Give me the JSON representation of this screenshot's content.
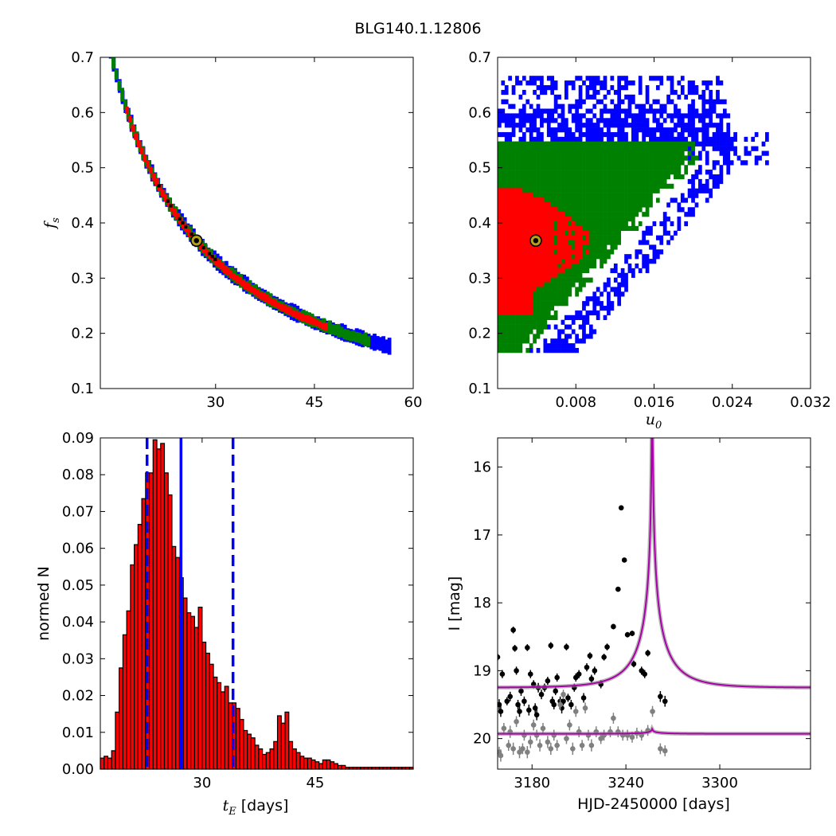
{
  "figure": {
    "title": "BLG140.1.12806"
  },
  "colors": {
    "sigma1": "#ff0000",
    "sigma2": "#008000",
    "sigma3": "#0000ff",
    "best_point": "#000000",
    "marker_fill": "#b8a016",
    "hist_bar": "#ff0000",
    "hist_edge": "#000000",
    "vline_median": "#0000ff",
    "vline_bounds": "#0000ff",
    "model_curve": "#aa00aa",
    "data_main": "#000000",
    "data_secondary": "#808080"
  },
  "chart_data": [
    {
      "id": "fs-vs-te",
      "type": "heatmap",
      "title": "",
      "xlabel": "",
      "ylabel": "f_s",
      "xlim": [
        12.5,
        60
      ],
      "ylim": [
        0.1,
        0.7
      ],
      "xticks": [
        30,
        45,
        60
      ],
      "yticks": [
        0.1,
        0.2,
        0.3,
        0.4,
        0.5,
        0.6,
        0.7
      ],
      "xtick_labels": [
        "30",
        "45",
        "60"
      ],
      "ytick_labels": [
        "0.1",
        "0.2",
        "0.3",
        "0.4",
        "0.5",
        "0.6",
        "0.7"
      ],
      "grid": false,
      "relation": "f_s ≈ 10.0 / t_E (days)",
      "regions": [
        {
          "level": "3-sigma",
          "color": "blue",
          "t_E_range": [
            13.6,
            56.8
          ],
          "half_width_fs": 0.011
        },
        {
          "level": "2-sigma",
          "color": "green",
          "t_E_range": [
            14.0,
            53.5
          ],
          "half_width_fs": 0.008
        },
        {
          "level": "1-sigma",
          "color": "red",
          "t_E_range": [
            16.5,
            47.0
          ],
          "half_width_fs": 0.005
        },
        {
          "level": "best",
          "color": "black",
          "t_E_range": [
            20.5,
            30.0
          ],
          "half_width_fs": 0.002
        }
      ],
      "best_fit": {
        "t_E": 27.1,
        "f_s": 0.368
      }
    },
    {
      "id": "fs-vs-u0",
      "type": "heatmap",
      "title": "",
      "xlabel": "u_0",
      "ylabel": "",
      "xlim": [
        0,
        0.032
      ],
      "ylim": [
        0.1,
        0.7
      ],
      "xticks": [
        0.008,
        0.016,
        0.024,
        0.032
      ],
      "yticks": [
        0.1,
        0.2,
        0.3,
        0.4,
        0.5,
        0.6,
        0.7
      ],
      "xtick_labels": [
        "0.008",
        "0.016",
        "0.024",
        "0.032"
      ],
      "ytick_labels": [
        "0.1",
        "0.2",
        "0.3",
        "0.4",
        "0.5",
        "0.6",
        "0.7"
      ],
      "grid": false,
      "regions": [
        {
          "level": "3-sigma",
          "color": "blue",
          "u0_range": [
            0,
            0.0275
          ],
          "f_s_range": [
            0.165,
            0.665
          ]
        },
        {
          "level": "2-sigma",
          "color": "green",
          "u0_range": [
            0,
            0.024
          ],
          "f_s_range": [
            0.165,
            0.55
          ]
        },
        {
          "level": "1-sigma",
          "color": "red",
          "u0_range": [
            0,
            0.0092
          ],
          "f_s_range": [
            0.225,
            0.455
          ]
        }
      ],
      "best_fit": {
        "u_0": 0.0039,
        "f_s": 0.368
      }
    },
    {
      "id": "te-histogram",
      "type": "bar",
      "title": "",
      "xlabel": "t_E [days]",
      "ylabel": "normed N",
      "xlim": [
        16.5,
        58
      ],
      "ylim": [
        0,
        0.09
      ],
      "xticks": [
        30,
        45
      ],
      "yticks": [
        0,
        0.01,
        0.02,
        0.03,
        0.04,
        0.05,
        0.06,
        0.07,
        0.08,
        0.09
      ],
      "xtick_labels": [
        "30",
        "45"
      ],
      "ytick_labels": [
        "0.00",
        "0.01",
        "0.02",
        "0.03",
        "0.04",
        "0.05",
        "0.06",
        "0.07",
        "0.08",
        "0.09"
      ],
      "grid": false,
      "bin_width": 0.5,
      "x": [
        16.5,
        17.0,
        17.5,
        18.0,
        18.5,
        19.0,
        19.5,
        20.0,
        20.5,
        21.0,
        21.5,
        22.0,
        22.5,
        23.0,
        23.5,
        24.0,
        24.5,
        25.0,
        25.5,
        26.0,
        26.5,
        27.0,
        27.5,
        28.0,
        28.5,
        29.0,
        29.5,
        30.0,
        30.5,
        31.0,
        31.5,
        32.0,
        32.5,
        33.0,
        33.5,
        34.0,
        34.5,
        35.0,
        35.5,
        36.0,
        36.5,
        37.0,
        37.5,
        38.0,
        38.5,
        39.0,
        39.5,
        40.0,
        40.5,
        41.0,
        41.5,
        42.0,
        42.5,
        43.0,
        43.5,
        44.0,
        44.5,
        45.0,
        45.5,
        46.0,
        46.5,
        47.0,
        47.5,
        48.0,
        48.5,
        49.0,
        49.5,
        50.0,
        50.5,
        51.0,
        51.5,
        52.0,
        52.5,
        53.0,
        53.5,
        54.0,
        54.5,
        55.0,
        55.5,
        56.0,
        56.5,
        57.0,
        57.5
      ],
      "values": [
        0.003,
        0.0035,
        0.003,
        0.005,
        0.0155,
        0.0275,
        0.0365,
        0.043,
        0.0555,
        0.061,
        0.0665,
        0.0735,
        0.0805,
        0.0805,
        0.0895,
        0.087,
        0.0885,
        0.0805,
        0.0745,
        0.0605,
        0.0575,
        0.052,
        0.0465,
        0.0425,
        0.0415,
        0.0385,
        0.044,
        0.0345,
        0.0315,
        0.0285,
        0.025,
        0.0235,
        0.021,
        0.0225,
        0.018,
        0.018,
        0.0165,
        0.0135,
        0.0105,
        0.0095,
        0.0085,
        0.0065,
        0.0055,
        0.004,
        0.0045,
        0.0055,
        0.0075,
        0.0145,
        0.0125,
        0.0155,
        0.0075,
        0.0055,
        0.0045,
        0.0035,
        0.003,
        0.003,
        0.0025,
        0.002,
        0.0015,
        0.0025,
        0.0025,
        0.002,
        0.0015,
        0.001,
        0.001,
        0.0005,
        0.0005,
        0.0005,
        0.0005,
        0.0005,
        0.0005,
        0.0005,
        0.0005,
        0.0005,
        0.0005,
        0.0005,
        0.0005,
        0.0005,
        0.0005,
        0.0005,
        0.0005,
        0.0005,
        0.0005
      ],
      "vlines": [
        {
          "x": 22.7,
          "style": "dashed",
          "role": "lower-bound"
        },
        {
          "x": 27.2,
          "style": "solid",
          "role": "median"
        },
        {
          "x": 34.1,
          "style": "dashed",
          "role": "upper-bound"
        }
      ]
    },
    {
      "id": "light-curve",
      "type": "scatter",
      "title": "",
      "xlabel": "HJD-2450000 [days]",
      "ylabel": "I [mag]",
      "xlim": [
        3158,
        3358
      ],
      "ylim": [
        20.45,
        15.57
      ],
      "inverted_y": true,
      "xticks": [
        3180,
        3240,
        3300
      ],
      "yticks": [
        16,
        17,
        18,
        19,
        20
      ],
      "xtick_labels": [
        "3180",
        "3240",
        "3300"
      ],
      "ytick_labels": [
        "16",
        "17",
        "18",
        "19",
        "20"
      ],
      "grid": false,
      "model": {
        "t0": 3256.8,
        "tE": 27.1,
        "u0": 0.0039,
        "baseline_mag": 19.25,
        "secondary_baseline_mag": 19.93
      },
      "series": [
        {
          "role": "main-telescope",
          "color": "black",
          "points": [
            [
              3158,
              18.8,
              0.05
            ],
            [
              3159,
              19.5,
              0.08
            ],
            [
              3160,
              19.6,
              0.08
            ],
            [
              3161,
              19.05,
              0.06
            ],
            [
              3164,
              19.45,
              0.06
            ],
            [
              3166,
              19.38,
              0.07
            ],
            [
              3168,
              18.4,
              0.05
            ],
            [
              3169,
              18.67,
              0.05
            ],
            [
              3170,
              19.0,
              0.06
            ],
            [
              3171,
              19.5,
              0.07
            ],
            [
              3172,
              19.6,
              0.08
            ],
            [
              3173,
              19.3,
              0.07
            ],
            [
              3175,
              19.45,
              0.07
            ],
            [
              3177,
              18.66,
              0.05
            ],
            [
              3178,
              19.58,
              0.08
            ],
            [
              3179,
              19.05,
              0.06
            ],
            [
              3181,
              19.2,
              0.06
            ],
            [
              3182,
              19.55,
              0.07
            ],
            [
              3183,
              19.65,
              0.08
            ],
            [
              3184,
              19.25,
              0.07
            ],
            [
              3186,
              19.35,
              0.07
            ],
            [
              3188,
              19.25,
              0.06
            ],
            [
              3190,
              19.15,
              0.06
            ],
            [
              3192,
              18.63,
              0.05
            ],
            [
              3193,
              19.45,
              0.07
            ],
            [
              3194,
              19.5,
              0.07
            ],
            [
              3195,
              19.3,
              0.06
            ],
            [
              3196,
              19.1,
              0.06
            ],
            [
              3198,
              19.45,
              0.07
            ],
            [
              3199,
              19.55,
              0.08
            ],
            [
              3200,
              19.45,
              0.06
            ],
            [
              3202,
              18.65,
              0.05
            ],
            [
              3203,
              19.4,
              0.06
            ],
            [
              3205,
              19.5,
              0.07
            ],
            [
              3207,
              19.25,
              0.06
            ],
            [
              3208,
              19.1,
              0.06
            ],
            [
              3210,
              19.05,
              0.06
            ],
            [
              3213,
              19.4,
              0.07
            ],
            [
              3215,
              18.95,
              0.06
            ],
            [
              3217,
              18.78,
              0.05
            ],
            [
              3218,
              19.12,
              0.06
            ],
            [
              3220,
              19.0,
              0.06
            ],
            [
              3224,
              19.2,
              0.06
            ],
            [
              3226,
              18.8,
              0.05
            ],
            [
              3228,
              18.65,
              0.05
            ],
            [
              3232,
              18.35,
              0.04
            ],
            [
              3235,
              17.8,
              0.03
            ],
            [
              3237,
              16.6,
              0.03
            ],
            [
              3239,
              17.37,
              0.03
            ],
            [
              3241,
              18.47,
              0.04
            ],
            [
              3244,
              18.45,
              0.04
            ],
            [
              3245,
              18.9,
              0.05
            ],
            [
              3250,
              19.0,
              0.06
            ],
            [
              3252,
              19.05,
              0.06
            ],
            [
              3254,
              18.74,
              0.05
            ],
            [
              3262,
              19.38,
              0.08
            ],
            [
              3265,
              19.45,
              0.08
            ]
          ]
        },
        {
          "role": "secondary-telescope",
          "color": "gray",
          "points": [
            [
              3159,
              20.2,
              0.08
            ],
            [
              3160,
              20.25,
              0.09
            ],
            [
              3162,
              19.85,
              0.08
            ],
            [
              3165,
              20.1,
              0.08
            ],
            [
              3166,
              19.9,
              0.09
            ],
            [
              3168,
              20.15,
              0.09
            ],
            [
              3170,
              19.75,
              0.08
            ],
            [
              3172,
              20.2,
              0.09
            ],
            [
              3174,
              20.15,
              0.08
            ],
            [
              3175,
              19.95,
              0.08
            ],
            [
              3177,
              20.2,
              0.09
            ],
            [
              3179,
              20.05,
              0.09
            ],
            [
              3181,
              19.8,
              0.08
            ],
            [
              3183,
              19.95,
              0.08
            ],
            [
              3185,
              20.1,
              0.09
            ],
            [
              3187,
              19.85,
              0.08
            ],
            [
              3190,
              20.05,
              0.09
            ],
            [
              3192,
              20.15,
              0.09
            ],
            [
              3194,
              19.95,
              0.08
            ],
            [
              3196,
              20.1,
              0.08
            ],
            [
              3198,
              19.5,
              0.08
            ],
            [
              3200,
              19.35,
              0.07
            ],
            [
              3202,
              20.0,
              0.08
            ],
            [
              3204,
              19.8,
              0.08
            ],
            [
              3206,
              20.15,
              0.09
            ],
            [
              3208,
              19.6,
              0.08
            ],
            [
              3210,
              19.9,
              0.08
            ],
            [
              3212,
              20.1,
              0.08
            ],
            [
              3214,
              19.55,
              0.08
            ],
            [
              3216,
              19.95,
              0.08
            ],
            [
              3218,
              20.1,
              0.09
            ],
            [
              3221,
              19.9,
              0.08
            ],
            [
              3224,
              20.0,
              0.08
            ],
            [
              3226,
              19.95,
              0.08
            ],
            [
              3230,
              19.9,
              0.08
            ],
            [
              3232,
              19.7,
              0.08
            ],
            [
              3235,
              19.9,
              0.08
            ],
            [
              3238,
              19.95,
              0.08
            ],
            [
              3241,
              19.95,
              0.08
            ],
            [
              3244,
              19.98,
              0.08
            ],
            [
              3247,
              19.92,
              0.08
            ],
            [
              3250,
              19.95,
              0.08
            ],
            [
              3254,
              19.88,
              0.08
            ],
            [
              3257,
              19.6,
              0.08
            ],
            [
              3262,
              20.15,
              0.08
            ],
            [
              3265,
              20.18,
              0.08
            ]
          ]
        }
      ]
    }
  ]
}
